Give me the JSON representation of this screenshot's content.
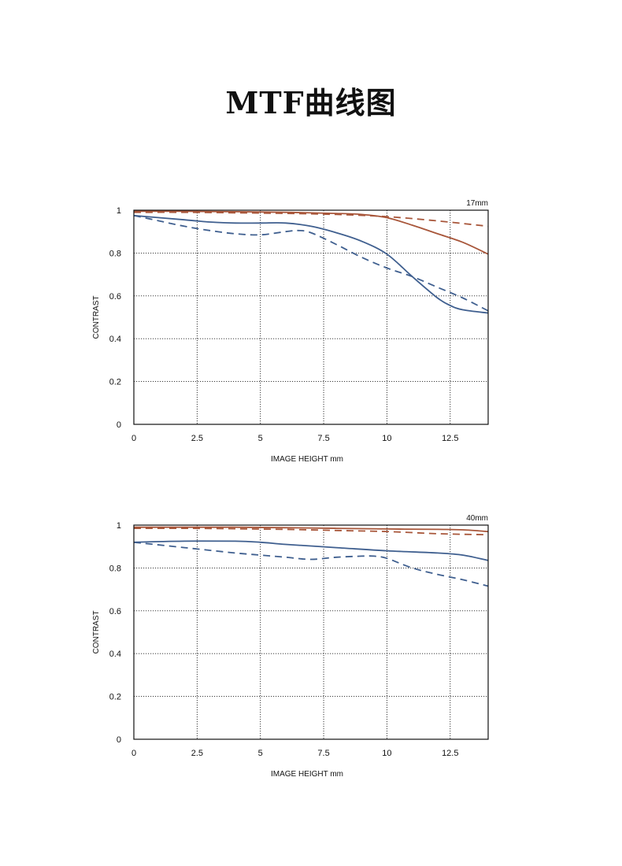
{
  "page": {
    "title": "MTF曲线图"
  },
  "colors": {
    "sagittal_30": "#a8563a",
    "meridional_30": "#a8563a",
    "sagittal_10": "#3f5f8f",
    "meridional_10": "#3f5f8f"
  },
  "chart_data": [
    {
      "type": "line",
      "focal_label": "17mm",
      "xlabel": "IMAGE HEIGHT  mm",
      "ylabel": "CONTRAST",
      "xlim": [
        0,
        14
      ],
      "ylim": [
        0,
        1
      ],
      "x_ticks": [
        0,
        2.5,
        5,
        7.5,
        10,
        12.5
      ],
      "x_tick_labels": [
        "0",
        "2.5",
        "5",
        "7.5",
        "10",
        "12.5"
      ],
      "y_ticks": [
        0,
        0.2,
        0.4,
        0.6,
        0.8,
        1
      ],
      "y_tick_labels": [
        "0",
        "0.2",
        "0.4",
        "0.6",
        "0.8",
        "1"
      ],
      "grid": true,
      "series": [
        {
          "color": "#a8563a",
          "dash": false,
          "x": [
            0,
            2,
            4,
            6,
            8,
            9,
            10,
            11,
            12,
            13,
            14
          ],
          "y": [
            0.995,
            0.995,
            0.993,
            0.99,
            0.985,
            0.98,
            0.965,
            0.93,
            0.89,
            0.85,
            0.795
          ]
        },
        {
          "color": "#a8563a",
          "dash": true,
          "x": [
            0,
            2,
            4,
            6,
            8,
            10,
            12,
            14
          ],
          "y": [
            0.99,
            0.99,
            0.988,
            0.985,
            0.98,
            0.97,
            0.95,
            0.925
          ]
        },
        {
          "color": "#3f5f8f",
          "dash": false,
          "x": [
            0,
            1,
            2,
            3,
            4,
            5,
            6,
            7,
            8,
            9,
            10,
            11,
            12,
            12.5,
            13,
            14
          ],
          "y": [
            0.975,
            0.965,
            0.955,
            0.945,
            0.94,
            0.94,
            0.94,
            0.925,
            0.895,
            0.855,
            0.795,
            0.69,
            0.59,
            0.555,
            0.535,
            0.52
          ]
        },
        {
          "color": "#3f5f8f",
          "dash": true,
          "x": [
            0,
            1,
            2,
            3,
            4,
            5,
            6,
            6.5,
            7,
            8,
            9,
            10,
            11,
            12,
            13,
            14
          ],
          "y": [
            0.975,
            0.95,
            0.925,
            0.905,
            0.89,
            0.885,
            0.9,
            0.905,
            0.895,
            0.84,
            0.78,
            0.73,
            0.69,
            0.64,
            0.59,
            0.53
          ]
        }
      ]
    },
    {
      "type": "line",
      "focal_label": "40mm",
      "xlabel": "IMAGE HEIGHT  mm",
      "ylabel": "CONTRAST",
      "xlim": [
        0,
        14
      ],
      "ylim": [
        0,
        1
      ],
      "x_ticks": [
        0,
        2.5,
        5,
        7.5,
        10,
        12.5
      ],
      "x_tick_labels": [
        "0",
        "2.5",
        "5",
        "7.5",
        "10",
        "12.5"
      ],
      "y_ticks": [
        0,
        0.2,
        0.4,
        0.6,
        0.8,
        1
      ],
      "y_tick_labels": [
        "0",
        "0.2",
        "0.4",
        "0.6",
        "0.8",
        "1"
      ],
      "grid": true,
      "series": [
        {
          "color": "#a8563a",
          "dash": false,
          "x": [
            0,
            2,
            4,
            6,
            8,
            10,
            12,
            13,
            14
          ],
          "y": [
            0.99,
            0.99,
            0.99,
            0.988,
            0.985,
            0.982,
            0.98,
            0.978,
            0.97
          ]
        },
        {
          "color": "#a8563a",
          "dash": true,
          "x": [
            0,
            2,
            4,
            6,
            8,
            10,
            12,
            14
          ],
          "y": [
            0.985,
            0.985,
            0.983,
            0.98,
            0.975,
            0.97,
            0.96,
            0.955
          ]
        },
        {
          "color": "#3f5f8f",
          "dash": false,
          "x": [
            0,
            2,
            4,
            5,
            6,
            8,
            10,
            12,
            13,
            14
          ],
          "y": [
            0.92,
            0.925,
            0.925,
            0.92,
            0.91,
            0.895,
            0.88,
            0.87,
            0.86,
            0.835
          ]
        },
        {
          "color": "#3f5f8f",
          "dash": true,
          "x": [
            0,
            2,
            4,
            5,
            6,
            7,
            8,
            9,
            9.5,
            10,
            11,
            12,
            13,
            14
          ],
          "y": [
            0.92,
            0.895,
            0.87,
            0.86,
            0.85,
            0.84,
            0.85,
            0.855,
            0.855,
            0.845,
            0.8,
            0.77,
            0.745,
            0.715
          ]
        }
      ]
    }
  ]
}
